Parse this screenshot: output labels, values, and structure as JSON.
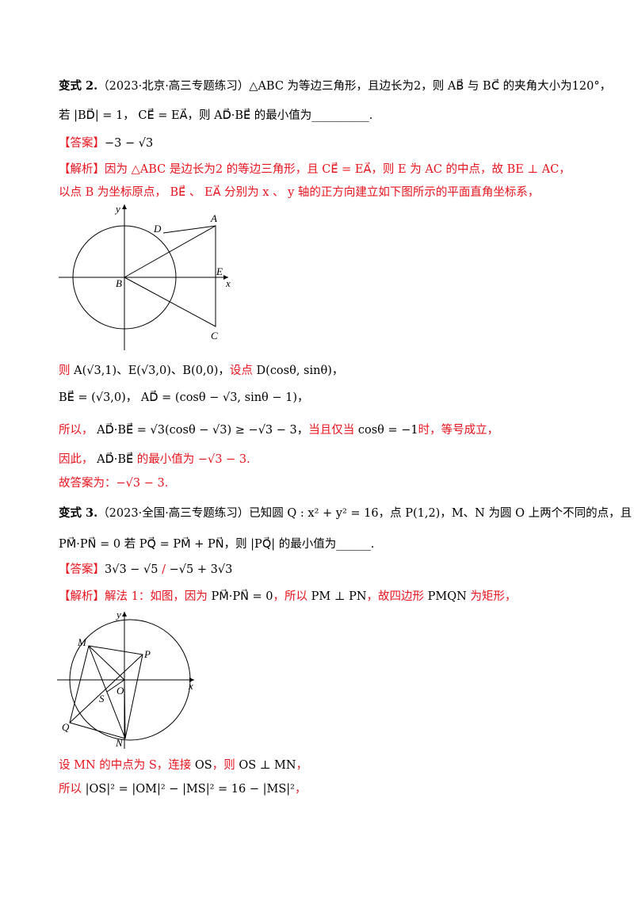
{
  "problem2": {
    "lines": [
      [
        {
          "t": "变式 2.",
          "c": "b",
          "bold": true
        },
        {
          "t": "（2023·北京·高三专题练习）△ABC 为等边三角形，且边长为2，则 AB⃗ 与 BC⃗ 的夹角大小为120°，",
          "c": "b"
        }
      ],
      [
        {
          "t": "若 |BD⃗| = 1， CE⃗ = EA⃗，则 AD⃗·BE⃗ 的最小值为__________.",
          "c": "b"
        }
      ],
      [
        {
          "t": "【答案】",
          "c": "r"
        },
        {
          "t": "−3 − √3",
          "c": "b"
        }
      ],
      [
        {
          "t": "【解析】因为 △ABC 是边长为2 的等边三角形，且 CE⃗ = EA⃗，则 E 为 AC 的中点，故 BE ⊥ AC，",
          "c": "r"
        }
      ],
      [
        {
          "t": "以点 B 为坐标原点， BE⃗ 、 EA⃗ 分别为 x 、 y 轴的正方向建立如下图所示的平面直角坐标系，",
          "c": "r"
        }
      ]
    ],
    "diagram_labels": {
      "A": "A",
      "B": "B",
      "C": "C",
      "D": "D",
      "E": "E",
      "x": "x",
      "y": "y"
    },
    "solution_lines": [
      [
        {
          "t": "则 ",
          "c": "r"
        },
        {
          "t": "A(√3,1)、E(√3,0)、B(0,0)，",
          "c": "b"
        },
        {
          "t": "设点 ",
          "c": "r"
        },
        {
          "t": "D(cosθ, sinθ)，",
          "c": "b"
        }
      ],
      [
        {
          "t": "BE⃗ = (√3,0)，  AD⃗ = (cosθ − √3, sinθ − 1)，",
          "c": "b"
        }
      ],
      [
        {
          "t": "所以， ",
          "c": "r"
        },
        {
          "t": "AD⃗·BE⃗ = √3(cosθ − √3) ≥ −√3 − 3，",
          "c": "b"
        },
        {
          "t": "当且仅当 ",
          "c": "r"
        },
        {
          "t": "cosθ = −1",
          "c": "b"
        },
        {
          "t": "时，等号成立，",
          "c": "r"
        }
      ],
      [
        {
          "t": "因此， ",
          "c": "r"
        },
        {
          "t": "AD⃗·BE⃗ ",
          "c": "b"
        },
        {
          "t": "的最小值为 −√3 − 3.",
          "c": "r"
        }
      ],
      [
        {
          "t": "故答案为：−√3 − 3.",
          "c": "r"
        }
      ]
    ]
  },
  "problem3": {
    "lines": [
      [
        {
          "t": "变式 3.",
          "c": "b",
          "bold": true
        },
        {
          "t": "（2023·全国·高三专题练习）已知圆 Q : x² + y² = 16，点 P(1,2)，M、N 为圆 O 上两个不同的点，且",
          "c": "b"
        }
      ],
      [
        {
          "t": "PM⃗·PN⃗ = 0 若 PQ⃗ = PM⃗ + PN⃗，则 |PQ⃗| 的最小值为______.",
          "c": "b"
        }
      ],
      [
        {
          "t": "【答案】",
          "c": "r"
        },
        {
          "t": "3√3 − √5 ",
          "c": "b"
        },
        {
          "t": "/",
          "c": "r"
        },
        {
          "t": " −√5 + 3√3",
          "c": "b"
        }
      ],
      [
        {
          "t": "【解析】解法 1：如图，因为 ",
          "c": "r"
        },
        {
          "t": "PM⃗·PN⃗ = 0",
          "c": "b"
        },
        {
          "t": "，所以 ",
          "c": "r"
        },
        {
          "t": "PM ⊥ PN",
          "c": "b"
        },
        {
          "t": "，故四边形 ",
          "c": "r"
        },
        {
          "t": "PMQN",
          "c": "b"
        },
        {
          "t": " 为矩形，",
          "c": "r"
        }
      ]
    ],
    "diagram_labels": {
      "M": "M",
      "P": "P",
      "Q": "Q",
      "N": "N",
      "S": "S",
      "O": "O",
      "x": "x",
      "y": "y"
    },
    "solution_lines": [
      [
        {
          "t": "设 MN 的中点为 S，连接 ",
          "c": "r"
        },
        {
          "t": "OS",
          "c": "b"
        },
        {
          "t": "，则 ",
          "c": "r"
        },
        {
          "t": "OS ⊥ MN",
          "c": "b"
        },
        {
          "t": "，",
          "c": "r"
        }
      ],
      [
        {
          "t": "所以 ",
          "c": "r"
        },
        {
          "t": "|OS|² = |OM|² − |MS|² = 16 − |MS|²",
          "c": "b"
        },
        {
          "t": "，",
          "c": "r"
        }
      ]
    ]
  },
  "colors": {
    "answer_red": "#e8141e",
    "text": "#000000"
  }
}
